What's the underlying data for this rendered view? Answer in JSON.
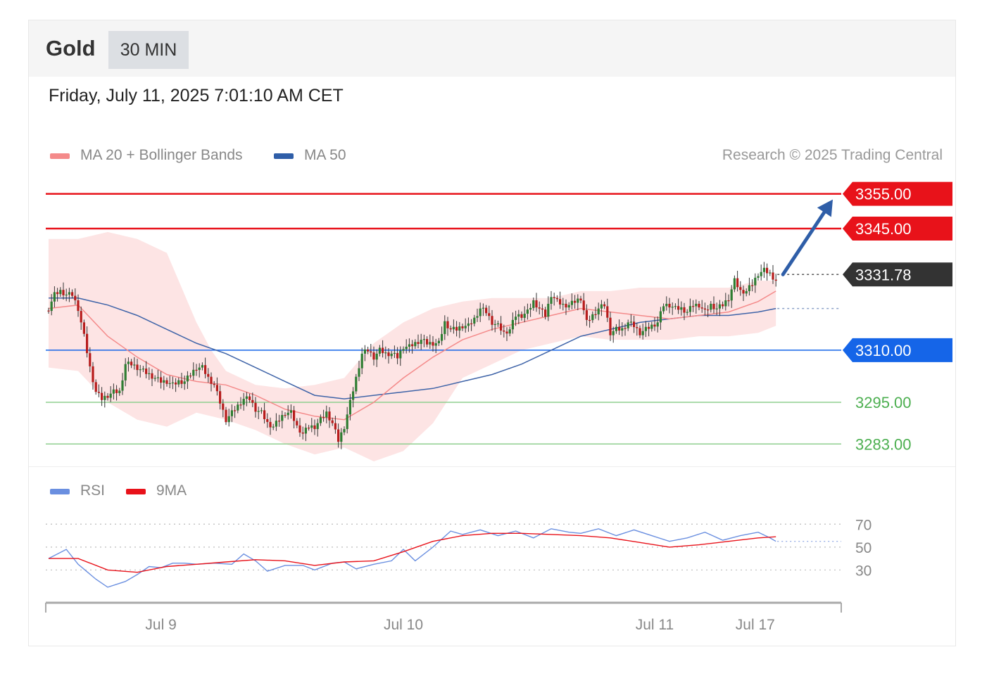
{
  "header": {
    "symbol": "Gold",
    "timeframe": "30 MIN"
  },
  "datetime": "Friday, July 11, 2025 7:01:10 AM CET",
  "legend": {
    "ma20": "MA 20 + Bollinger Bands",
    "ma50": "MA 50",
    "credit": "Research © 2025 Trading Central",
    "rsi": "RSI",
    "rsi_ma": "9MA"
  },
  "colors": {
    "resistance": "#e8121a",
    "support_pivot": "#1565e8",
    "support": "#4caf50",
    "current": "#333333",
    "ma20": "#f48a8a",
    "ma50": "#3f64a8",
    "bollinger_fill": "#fde4e4",
    "bull_candle": "#2e7d32",
    "bear_candle": "#b71c1c",
    "rsi": "#6a8fe0",
    "rsi_ma": "#e8121a",
    "arrow": "#2f5ea8"
  },
  "chart_data": {
    "type": "candlestick",
    "price_axis": {
      "ylim": [
        3278,
        3362
      ]
    },
    "levels": [
      {
        "value": 3355.0,
        "label": "3355.00",
        "kind": "resistance"
      },
      {
        "value": 3345.0,
        "label": "3345.00",
        "kind": "resistance"
      },
      {
        "value": 3331.78,
        "label": "3331.78",
        "kind": "current"
      },
      {
        "value": 3310.0,
        "label": "3310.00",
        "kind": "pivot"
      },
      {
        "value": 3295.0,
        "label": "3295.00",
        "kind": "support"
      },
      {
        "value": 3283.0,
        "label": "3283.00",
        "kind": "support"
      }
    ],
    "close_path": [
      [
        0,
        3322
      ],
      [
        2,
        3326
      ],
      [
        4,
        3327
      ],
      [
        6,
        3326
      ],
      [
        8,
        3326
      ],
      [
        10,
        3322
      ],
      [
        12,
        3314
      ],
      [
        14,
        3305
      ],
      [
        16,
        3298
      ],
      [
        18,
        3296
      ],
      [
        20,
        3297
      ],
      [
        22,
        3298
      ],
      [
        24,
        3298
      ],
      [
        26,
        3306
      ],
      [
        28,
        3306
      ],
      [
        30,
        3305
      ],
      [
        32,
        3304
      ],
      [
        34,
        3303
      ],
      [
        36,
        3302
      ],
      [
        38,
        3301
      ],
      [
        40,
        3301
      ],
      [
        42,
        3300
      ],
      [
        44,
        3301
      ],
      [
        46,
        3301
      ],
      [
        48,
        3303
      ],
      [
        50,
        3305
      ],
      [
        52,
        3305
      ],
      [
        54,
        3302
      ],
      [
        56,
        3300
      ],
      [
        58,
        3295
      ],
      [
        60,
        3290
      ],
      [
        62,
        3292
      ],
      [
        64,
        3294
      ],
      [
        66,
        3296
      ],
      [
        68,
        3296
      ],
      [
        70,
        3293
      ],
      [
        72,
        3292
      ],
      [
        74,
        3289
      ],
      [
        76,
        3288
      ],
      [
        78,
        3290
      ],
      [
        80,
        3292
      ],
      [
        82,
        3292
      ],
      [
        84,
        3288
      ],
      [
        86,
        3286
      ],
      [
        88,
        3288
      ],
      [
        90,
        3288
      ],
      [
        92,
        3290
      ],
      [
        94,
        3292
      ],
      [
        96,
        3289
      ],
      [
        98,
        3284
      ],
      [
        100,
        3288
      ],
      [
        102,
        3295
      ],
      [
        104,
        3302
      ],
      [
        106,
        3309
      ],
      [
        108,
        3310
      ],
      [
        110,
        3308
      ],
      [
        112,
        3310
      ],
      [
        114,
        3309
      ],
      [
        116,
        3309
      ],
      [
        118,
        3308
      ],
      [
        120,
        3311
      ],
      [
        122,
        3311
      ],
      [
        124,
        3312
      ],
      [
        126,
        3313
      ],
      [
        128,
        3312
      ],
      [
        130,
        3312
      ],
      [
        132,
        3312
      ],
      [
        134,
        3318
      ],
      [
        136,
        3316
      ],
      [
        138,
        3316
      ],
      [
        140,
        3317
      ],
      [
        142,
        3317
      ],
      [
        144,
        3319
      ],
      [
        146,
        3322
      ],
      [
        148,
        3321
      ],
      [
        150,
        3318
      ],
      [
        152,
        3317
      ],
      [
        154,
        3315
      ],
      [
        156,
        3316
      ],
      [
        158,
        3320
      ],
      [
        160,
        3320
      ],
      [
        162,
        3321
      ],
      [
        164,
        3324
      ],
      [
        166,
        3322
      ],
      [
        168,
        3320
      ],
      [
        170,
        3326
      ],
      [
        172,
        3324
      ],
      [
        174,
        3323
      ],
      [
        176,
        3323
      ],
      [
        178,
        3324
      ],
      [
        180,
        3325
      ],
      [
        182,
        3318
      ],
      [
        184,
        3320
      ],
      [
        186,
        3322
      ],
      [
        188,
        3323
      ],
      [
        190,
        3315
      ],
      [
        192,
        3316
      ],
      [
        194,
        3316
      ],
      [
        196,
        3318
      ],
      [
        198,
        3317
      ],
      [
        200,
        3315
      ],
      [
        202,
        3316
      ],
      [
        204,
        3317
      ],
      [
        206,
        3318
      ],
      [
        208,
        3323
      ],
      [
        210,
        3323
      ],
      [
        212,
        3322
      ],
      [
        214,
        3322
      ],
      [
        216,
        3321
      ],
      [
        218,
        3323
      ],
      [
        220,
        3323
      ],
      [
        222,
        3321
      ],
      [
        224,
        3323
      ],
      [
        226,
        3322
      ],
      [
        228,
        3323
      ],
      [
        230,
        3325
      ],
      [
        232,
        3330
      ],
      [
        234,
        3327
      ],
      [
        236,
        3327
      ],
      [
        238,
        3329
      ],
      [
        240,
        3332
      ],
      [
        242,
        3333
      ],
      [
        244,
        3332
      ],
      [
        246,
        3330
      ]
    ],
    "ma20_path": [
      [
        0,
        3322
      ],
      [
        10,
        3323
      ],
      [
        20,
        3314
      ],
      [
        30,
        3308
      ],
      [
        40,
        3303
      ],
      [
        50,
        3301
      ],
      [
        60,
        3300
      ],
      [
        70,
        3297
      ],
      [
        80,
        3293
      ],
      [
        90,
        3291
      ],
      [
        100,
        3290
      ],
      [
        110,
        3295
      ],
      [
        120,
        3302
      ],
      [
        130,
        3308
      ],
      [
        140,
        3313
      ],
      [
        150,
        3316
      ],
      [
        160,
        3318
      ],
      [
        170,
        3320
      ],
      [
        180,
        3322
      ],
      [
        190,
        3321
      ],
      [
        200,
        3320
      ],
      [
        210,
        3319
      ],
      [
        220,
        3320
      ],
      [
        230,
        3321
      ],
      [
        240,
        3324
      ],
      [
        246,
        3327
      ]
    ],
    "ma50_path": [
      [
        0,
        3325
      ],
      [
        10,
        3325
      ],
      [
        20,
        3323
      ],
      [
        30,
        3320
      ],
      [
        40,
        3316
      ],
      [
        50,
        3312
      ],
      [
        60,
        3309
      ],
      [
        70,
        3305
      ],
      [
        80,
        3301
      ],
      [
        90,
        3297
      ],
      [
        100,
        3296
      ],
      [
        110,
        3297
      ],
      [
        120,
        3298
      ],
      [
        130,
        3299
      ],
      [
        140,
        3301
      ],
      [
        150,
        3303
      ],
      [
        160,
        3306
      ],
      [
        170,
        3310
      ],
      [
        180,
        3314
      ],
      [
        190,
        3316
      ],
      [
        200,
        3318
      ],
      [
        210,
        3319
      ],
      [
        220,
        3320
      ],
      [
        230,
        3320
      ],
      [
        240,
        3321
      ],
      [
        246,
        3322
      ]
    ],
    "bb_upper": [
      [
        0,
        3342
      ],
      [
        10,
        3342
      ],
      [
        20,
        3344
      ],
      [
        30,
        3342
      ],
      [
        40,
        3338
      ],
      [
        45,
        3328
      ],
      [
        50,
        3318
      ],
      [
        55,
        3310
      ],
      [
        60,
        3304
      ],
      [
        70,
        3300
      ],
      [
        80,
        3299
      ],
      [
        90,
        3300
      ],
      [
        100,
        3302
      ],
      [
        110,
        3312
      ],
      [
        120,
        3318
      ],
      [
        130,
        3322
      ],
      [
        140,
        3324
      ],
      [
        150,
        3325
      ],
      [
        160,
        3325
      ],
      [
        170,
        3325
      ],
      [
        180,
        3327
      ],
      [
        190,
        3327
      ],
      [
        200,
        3328
      ],
      [
        210,
        3328
      ],
      [
        220,
        3328
      ],
      [
        230,
        3328
      ],
      [
        240,
        3330
      ],
      [
        246,
        3330
      ]
    ],
    "bb_lower": [
      [
        0,
        3305
      ],
      [
        10,
        3304
      ],
      [
        20,
        3295
      ],
      [
        30,
        3290
      ],
      [
        40,
        3288
      ],
      [
        50,
        3292
      ],
      [
        60,
        3290
      ],
      [
        70,
        3287
      ],
      [
        80,
        3283
      ],
      [
        90,
        3280
      ],
      [
        100,
        3282
      ],
      [
        110,
        3278
      ],
      [
        120,
        3281
      ],
      [
        130,
        3289
      ],
      [
        140,
        3302
      ],
      [
        150,
        3306
      ],
      [
        160,
        3310
      ],
      [
        170,
        3312
      ],
      [
        180,
        3314
      ],
      [
        190,
        3313
      ],
      [
        200,
        3313
      ],
      [
        210,
        3313
      ],
      [
        220,
        3314
      ],
      [
        230,
        3314
      ],
      [
        240,
        3315
      ],
      [
        246,
        3317
      ]
    ],
    "rsi_axis": {
      "ylim": [
        10,
        80
      ],
      "ticks": [
        "70",
        "50",
        "30"
      ],
      "tick_values": [
        70,
        50,
        30
      ]
    },
    "rsi_path": [
      [
        0,
        40
      ],
      [
        6,
        48
      ],
      [
        10,
        35
      ],
      [
        16,
        22
      ],
      [
        20,
        15
      ],
      [
        26,
        20
      ],
      [
        30,
        26
      ],
      [
        34,
        33
      ],
      [
        38,
        32
      ],
      [
        42,
        36
      ],
      [
        46,
        36
      ],
      [
        50,
        35
      ],
      [
        56,
        36
      ],
      [
        62,
        35
      ],
      [
        66,
        44
      ],
      [
        70,
        38
      ],
      [
        74,
        29
      ],
      [
        80,
        34
      ],
      [
        86,
        34
      ],
      [
        90,
        30
      ],
      [
        96,
        36
      ],
      [
        100,
        37
      ],
      [
        104,
        31
      ],
      [
        110,
        35
      ],
      [
        116,
        38
      ],
      [
        120,
        48
      ],
      [
        124,
        38
      ],
      [
        130,
        50
      ],
      [
        136,
        64
      ],
      [
        140,
        61
      ],
      [
        146,
        65
      ],
      [
        152,
        60
      ],
      [
        158,
        64
      ],
      [
        164,
        58
      ],
      [
        170,
        66
      ],
      [
        176,
        63
      ],
      [
        180,
        62
      ],
      [
        186,
        66
      ],
      [
        192,
        60
      ],
      [
        198,
        65
      ],
      [
        204,
        60
      ],
      [
        210,
        55
      ],
      [
        216,
        58
      ],
      [
        222,
        63
      ],
      [
        228,
        56
      ],
      [
        234,
        60
      ],
      [
        240,
        63
      ],
      [
        244,
        58
      ],
      [
        246,
        55
      ]
    ],
    "rsi_ma_path": [
      [
        0,
        40
      ],
      [
        10,
        40
      ],
      [
        20,
        30
      ],
      [
        30,
        28
      ],
      [
        40,
        33
      ],
      [
        50,
        35
      ],
      [
        60,
        37
      ],
      [
        70,
        39
      ],
      [
        80,
        38
      ],
      [
        90,
        34
      ],
      [
        100,
        37
      ],
      [
        110,
        38
      ],
      [
        120,
        46
      ],
      [
        130,
        55
      ],
      [
        140,
        60
      ],
      [
        150,
        62
      ],
      [
        160,
        62
      ],
      [
        170,
        61
      ],
      [
        180,
        60
      ],
      [
        190,
        58
      ],
      [
        200,
        54
      ],
      [
        210,
        50
      ],
      [
        220,
        52
      ],
      [
        230,
        55
      ],
      [
        240,
        58
      ],
      [
        246,
        59
      ]
    ],
    "x_ticks": [
      {
        "label": "Jul 9",
        "index": 38
      },
      {
        "label": "Jul 10",
        "index": 120
      },
      {
        "label": "Jul 11",
        "index": 205
      },
      {
        "label": "Jul 17",
        "index": 239
      }
    ]
  }
}
